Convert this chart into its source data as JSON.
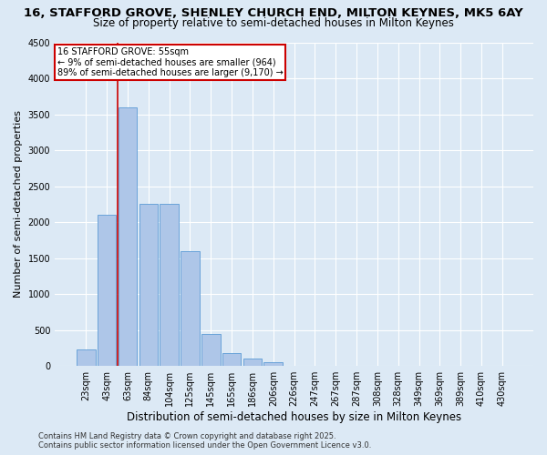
{
  "title": "16, STAFFORD GROVE, SHENLEY CHURCH END, MILTON KEYNES, MK5 6AY",
  "subtitle": "Size of property relative to semi-detached houses in Milton Keynes",
  "xlabel": "Distribution of semi-detached houses by size in Milton Keynes",
  "ylabel": "Number of semi-detached properties",
  "bin_labels": [
    "23sqm",
    "43sqm",
    "63sqm",
    "84sqm",
    "104sqm",
    "125sqm",
    "145sqm",
    "165sqm",
    "186sqm",
    "206sqm",
    "226sqm",
    "247sqm",
    "267sqm",
    "287sqm",
    "308sqm",
    "328sqm",
    "349sqm",
    "369sqm",
    "389sqm",
    "410sqm",
    "430sqm"
  ],
  "bar_values": [
    230,
    2100,
    3600,
    2250,
    2250,
    1600,
    450,
    180,
    100,
    55,
    0,
    0,
    0,
    0,
    0,
    0,
    0,
    0,
    0,
    0,
    0
  ],
  "bar_color": "#aec6e8",
  "bar_edge_color": "#5b9bd5",
  "background_color": "#dce9f5",
  "grid_color": "#ffffff",
  "annotation_title": "16 STAFFORD GROVE: 55sqm",
  "annotation_line1": "← 9% of semi-detached houses are smaller (964)",
  "annotation_line2": "89% of semi-detached houses are larger (9,170) →",
  "annotation_box_color": "#ffffff",
  "annotation_box_edge": "#cc0000",
  "vline_color": "#cc0000",
  "vline_index": 2,
  "ylim": [
    0,
    4500
  ],
  "yticks": [
    0,
    500,
    1000,
    1500,
    2000,
    2500,
    3000,
    3500,
    4000,
    4500
  ],
  "footnote1": "Contains HM Land Registry data © Crown copyright and database right 2025.",
  "footnote2": "Contains public sector information licensed under the Open Government Licence v3.0.",
  "title_fontsize": 9.5,
  "subtitle_fontsize": 8.5,
  "xlabel_fontsize": 8.5,
  "ylabel_fontsize": 8,
  "tick_fontsize": 7,
  "annot_fontsize": 7
}
